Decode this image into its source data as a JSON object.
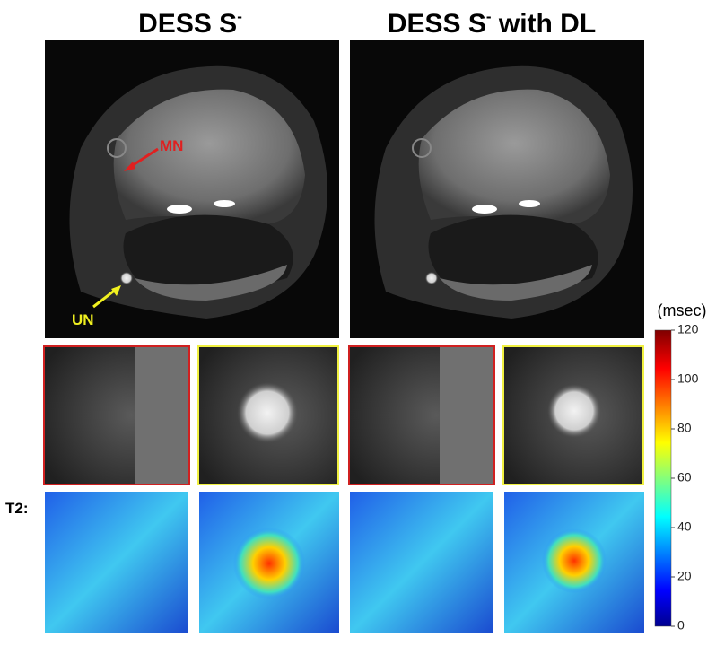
{
  "titles": [
    {
      "text": "DESS S",
      "sup": "-"
    },
    {
      "text": "DESS S",
      "sup": "-",
      "suffix": " with DL"
    }
  ],
  "annotations": {
    "mn": "MN",
    "un": "UN",
    "row_label": "T2:"
  },
  "colorbar": {
    "unit": "(msec)",
    "lim": [
      0,
      120
    ],
    "ticks": [
      0,
      20,
      40,
      60,
      80,
      100,
      120
    ]
  }
}
